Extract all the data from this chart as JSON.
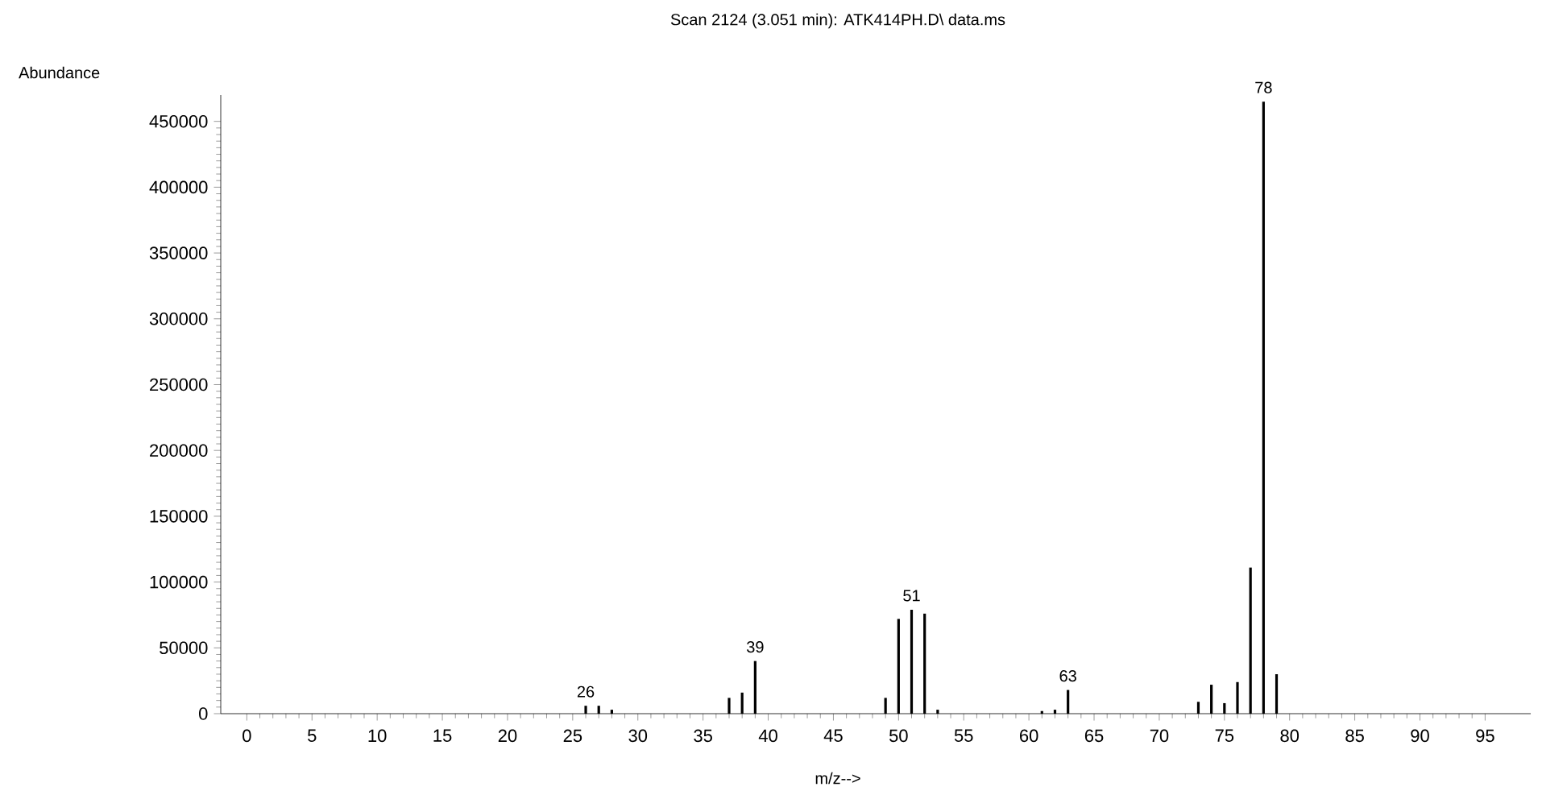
{
  "chart_data": {
    "type": "bar",
    "title": "Scan 2124 (3.051 min): ATK414PH.D\\ data.ms",
    "xlabel": "m/z-->",
    "ylabel": "Abundance",
    "x": [
      26,
      27,
      28,
      37,
      38,
      39,
      49,
      50,
      51,
      52,
      53,
      61,
      62,
      63,
      73,
      74,
      75,
      76,
      77,
      78,
      79
    ],
    "values": [
      6000,
      6000,
      3000,
      12000,
      16000,
      40000,
      12000,
      72000,
      79000,
      76000,
      3000,
      2000,
      3000,
      18000,
      9000,
      22000,
      8000,
      24000,
      111000,
      465000,
      30000
    ],
    "color": "#000000",
    "xlim": [
      -2,
      98.5
    ],
    "ylim": [
      0,
      470000
    ],
    "xticks": [
      0,
      5,
      10,
      15,
      20,
      25,
      30,
      35,
      40,
      45,
      50,
      55,
      60,
      65,
      70,
      75,
      80,
      85,
      90,
      95
    ],
    "yticks": [
      0,
      50000,
      100000,
      150000,
      200000,
      250000,
      300000,
      350000,
      400000,
      450000
    ],
    "annotations": [
      {
        "text": "26",
        "x": 26,
        "y": 6000
      },
      {
        "text": "39",
        "x": 39,
        "y": 40000
      },
      {
        "text": "51",
        "x": 51,
        "y": 79000
      },
      {
        "text": "63",
        "x": 63,
        "y": 18000
      },
      {
        "text": "78",
        "x": 78,
        "y": 465000
      }
    ]
  }
}
